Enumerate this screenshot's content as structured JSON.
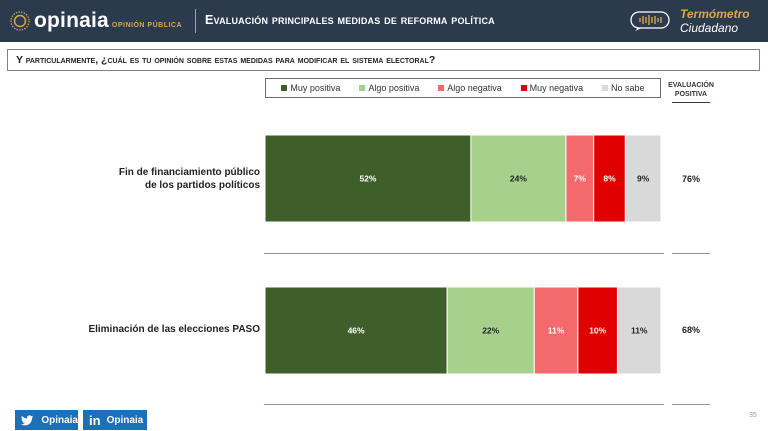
{
  "header": {
    "brand": "opinaia",
    "brand_sub": "OPINIÓN PÚBLICA",
    "title": "Evaluación principales medidas de reforma política",
    "badge_line1": "Termómetro",
    "badge_line2": "Ciudadano"
  },
  "question": "Y particularmente, ¿cuál es tu opinión sobre estas medidas para modificar el sistema electoral?",
  "legend": [
    {
      "label": "Muy positiva",
      "color": "#3f5f2a"
    },
    {
      "label": "Algo positiva",
      "color": "#a8d08d"
    },
    {
      "label": "Algo negativa",
      "color": "#f4696b"
    },
    {
      "label": "Muy negativa",
      "color": "#e00000"
    },
    {
      "label": "No sabe",
      "color": "#d9d9d9"
    }
  ],
  "eval_header": "EVALUACIÓN POSITIVA",
  "chart_data": {
    "type": "bar",
    "orientation": "horizontal",
    "stacked": true,
    "percent": true,
    "categories": [
      "Fin de financiamiento público de los partidos políticos",
      "Eliminación de las elecciones PASO"
    ],
    "series": [
      {
        "name": "Muy positiva",
        "color": "#3f5f2a",
        "values": [
          52,
          46
        ],
        "labels": [
          "52%",
          "46%"
        ]
      },
      {
        "name": "Algo positiva",
        "color": "#a8d08d",
        "values": [
          24,
          22
        ],
        "labels": [
          "24%",
          "22%"
        ]
      },
      {
        "name": "Algo negativa",
        "color": "#f4696b",
        "values": [
          7,
          11
        ],
        "labels": [
          "7%",
          "11%"
        ]
      },
      {
        "name": "Muy negativa",
        "color": "#e00000",
        "values": [
          8,
          10
        ],
        "labels": [
          "8%",
          "10%"
        ]
      },
      {
        "name": "No sabe",
        "color": "#d9d9d9",
        "values": [
          9,
          11
        ],
        "labels": [
          "9%",
          "11%"
        ]
      }
    ],
    "evaluacion_positiva": [
      "76%",
      "68%"
    ],
    "legend_position": "top"
  },
  "rows": [
    {
      "label_line1": "Fin de financiamiento público",
      "label_line2": "de los partidos políticos",
      "eval": "76%"
    },
    {
      "label_line1": "Eliminación de las elecciones PASO",
      "label_line2": "",
      "eval": "68%"
    }
  ],
  "footer": {
    "twitter": "Opinaia",
    "linkedin": "Opinaia",
    "page": "35"
  }
}
